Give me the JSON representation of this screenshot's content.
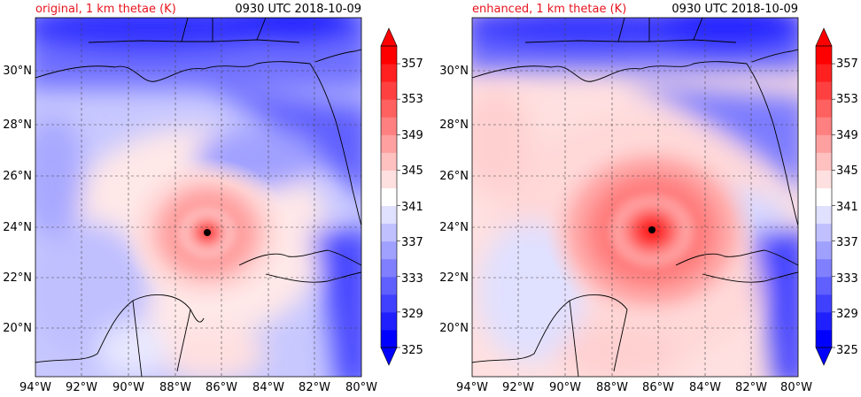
{
  "chart_data": [
    {
      "type": "heatmap",
      "title": "original, 1 km thetae (K)",
      "time_label": "0930 UTC 2018-10-09",
      "x_ticks": [
        "94°W",
        "92°W",
        "90°W",
        "88°W",
        "86°W",
        "84°W",
        "82°W",
        "80°W"
      ],
      "y_ticks": [
        "20°N",
        "22°N",
        "24°N",
        "26°N",
        "28°N",
        "30°N"
      ],
      "xlim": [
        -94,
        -80
      ],
      "ylim": [
        18.1,
        32.1
      ],
      "grid": true,
      "storm_center": {
        "lon": -86.6,
        "lat": 23.8
      },
      "colorbar": {
        "ticks": [
          "325",
          "329",
          "333",
          "337",
          "341",
          "345",
          "349",
          "353",
          "357"
        ],
        "levels": [
          325,
          327,
          329,
          331,
          333,
          335,
          337,
          339,
          341,
          343,
          345,
          347,
          349,
          351,
          353,
          355,
          357,
          359
        ],
        "colors": [
          "#0000ff",
          "#2020ff",
          "#4040ff",
          "#6060ff",
          "#8080ff",
          "#a0a0ff",
          "#c0c0ff",
          "#e0e0ff",
          "#ffffff",
          "#ffe0e0",
          "#ffc0c0",
          "#ffa0a0",
          "#ff8080",
          "#ff6060",
          "#ff4040",
          "#ff2020",
          "#ff0000"
        ],
        "extend": "both"
      }
    },
    {
      "type": "heatmap",
      "title": "enhanced, 1 km thetae (K)",
      "time_label": "0930 UTC 2018-10-09",
      "x_ticks": [
        "94°W",
        "92°W",
        "90°W",
        "88°W",
        "86°W",
        "84°W",
        "82°W",
        "80°W"
      ],
      "y_ticks": [
        "20°N",
        "22°N",
        "24°N",
        "26°N",
        "28°N",
        "30°N"
      ],
      "xlim": [
        -94,
        -80
      ],
      "ylim": [
        18.1,
        32.1
      ],
      "grid": true,
      "storm_center": {
        "lon": -86.2,
        "lat": 23.9
      },
      "colorbar": {
        "ticks": [
          "325",
          "329",
          "333",
          "337",
          "341",
          "345",
          "349",
          "353",
          "357"
        ],
        "levels": [
          325,
          327,
          329,
          331,
          333,
          335,
          337,
          339,
          341,
          343,
          345,
          347,
          349,
          351,
          353,
          355,
          357,
          359
        ],
        "colors": [
          "#0000ff",
          "#2020ff",
          "#4040ff",
          "#6060ff",
          "#8080ff",
          "#a0a0ff",
          "#c0c0ff",
          "#e0e0ff",
          "#ffffff",
          "#ffe0e0",
          "#ffc0c0",
          "#ffa0a0",
          "#ff8080",
          "#ff6060",
          "#ff4040",
          "#ff2020",
          "#ff0000"
        ],
        "extend": "both"
      }
    }
  ]
}
